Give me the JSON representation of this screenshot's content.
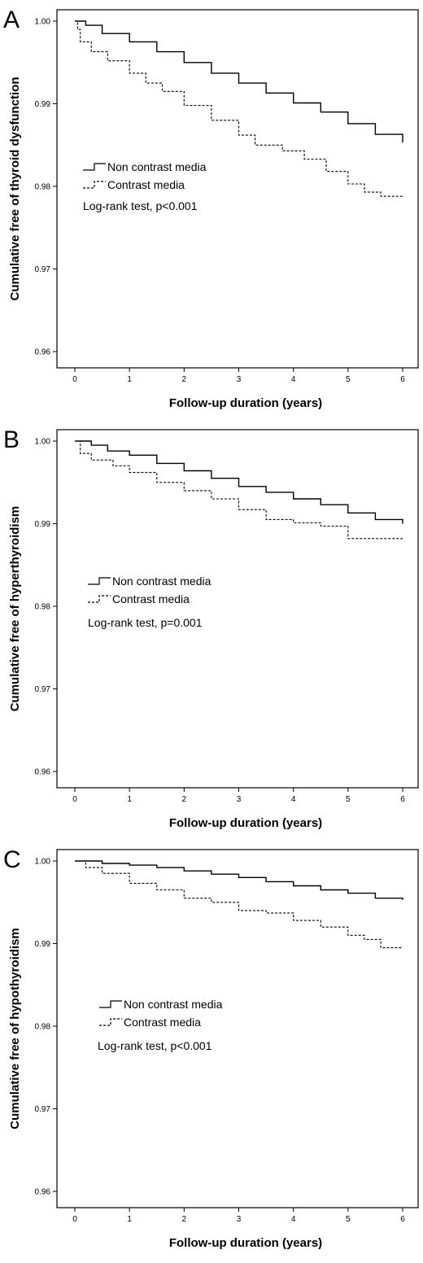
{
  "chart_data": [
    {
      "type": "line",
      "panel_label": "A",
      "ylabel": "Cumulative free of thyroid dysfunction",
      "xlabel": "Follow-up duration (years)",
      "xlim": [
        0,
        6
      ],
      "ylim": [
        0.96,
        1.0
      ],
      "x_ticks": [
        "0",
        "1",
        "2",
        "3",
        "4",
        "5",
        "6"
      ],
      "y_ticks": [
        "0.96",
        "0.97",
        "0.98",
        "0.99",
        "1.00"
      ],
      "legend_position": "center-left",
      "annotation": "Log-rank test, p<0.001",
      "series": [
        {
          "name": "Non contrast media",
          "style": "solid",
          "x": [
            0,
            0.2,
            0.5,
            1,
            1.5,
            2,
            2.5,
            3,
            3.5,
            4,
            4.5,
            5,
            5.5,
            6
          ],
          "y": [
            1.0,
            0.9995,
            0.9985,
            0.9975,
            0.9963,
            0.995,
            0.9937,
            0.9925,
            0.9913,
            0.9901,
            0.989,
            0.9876,
            0.9863,
            0.9853
          ]
        },
        {
          "name": "Contrast media",
          "style": "dashed",
          "x": [
            0,
            0.05,
            0.1,
            0.3,
            0.6,
            1,
            1.3,
            1.6,
            2,
            2.5,
            3,
            3.3,
            3.8,
            4.2,
            4.6,
            5,
            5.3,
            5.6,
            6
          ],
          "y": [
            1.0,
            0.999,
            0.9975,
            0.9963,
            0.9952,
            0.9937,
            0.9925,
            0.9915,
            0.9898,
            0.988,
            0.9862,
            0.985,
            0.9843,
            0.9833,
            0.9818,
            0.9803,
            0.9793,
            0.9788,
            0.9788
          ]
        }
      ]
    },
    {
      "type": "line",
      "panel_label": "B",
      "ylabel": "Cumulative free of hyperthyroidism",
      "xlabel": "Follow-up duration (years)",
      "xlim": [
        0,
        6
      ],
      "ylim": [
        0.96,
        1.0
      ],
      "x_ticks": [
        "0",
        "1",
        "2",
        "3",
        "4",
        "5",
        "6"
      ],
      "y_ticks": [
        "0.96",
        "0.97",
        "0.98",
        "0.99",
        "1.00"
      ],
      "legend_position": "center-left",
      "annotation": "Log-rank test, p=0.001",
      "series": [
        {
          "name": "Non contrast media",
          "style": "solid",
          "x": [
            0,
            0.3,
            0.6,
            1,
            1.5,
            2,
            2.5,
            3,
            3.5,
            4,
            4.5,
            5,
            5.5,
            6
          ],
          "y": [
            1.0,
            0.9995,
            0.9988,
            0.9983,
            0.9973,
            0.9964,
            0.9955,
            0.9945,
            0.9938,
            0.993,
            0.9923,
            0.9913,
            0.9905,
            0.99
          ]
        },
        {
          "name": "Contrast media",
          "style": "dashed",
          "x": [
            0,
            0.1,
            0.3,
            0.7,
            1,
            1.5,
            2,
            2.5,
            3,
            3.5,
            4,
            4.5,
            5,
            5.5,
            6
          ],
          "y": [
            1.0,
            0.9985,
            0.9977,
            0.997,
            0.9962,
            0.995,
            0.994,
            0.993,
            0.9917,
            0.9905,
            0.9901,
            0.9897,
            0.9882,
            0.9882,
            0.9882
          ]
        }
      ]
    },
    {
      "type": "line",
      "panel_label": "C",
      "ylabel": "Cumulative free of hypothyroidism",
      "xlabel": "Follow-up duration (years)",
      "xlim": [
        0,
        6
      ],
      "ylim": [
        0.96,
        1.0
      ],
      "x_ticks": [
        "0",
        "1",
        "2",
        "3",
        "4",
        "5",
        "6"
      ],
      "y_ticks": [
        "0.96",
        "0.97",
        "0.98",
        "0.99",
        "1.00"
      ],
      "legend_position": "center-left",
      "annotation": "Log-rank test, p<0.001",
      "series": [
        {
          "name": "Non contrast media",
          "style": "solid",
          "x": [
            0,
            0.5,
            1,
            1.5,
            2,
            2.5,
            3,
            3.5,
            4,
            4.5,
            5,
            5.5,
            6
          ],
          "y": [
            1.0,
            0.9997,
            0.9995,
            0.9992,
            0.9988,
            0.9984,
            0.998,
            0.9975,
            0.997,
            0.9965,
            0.9961,
            0.9955,
            0.9953
          ]
        },
        {
          "name": "Contrast media",
          "style": "dashed",
          "x": [
            0,
            0.2,
            0.5,
            1,
            1.5,
            2,
            2.5,
            3,
            3.5,
            4,
            4.5,
            5,
            5.3,
            5.6,
            6
          ],
          "y": [
            1.0,
            0.9992,
            0.9985,
            0.9973,
            0.9965,
            0.9955,
            0.995,
            0.994,
            0.9937,
            0.9928,
            0.992,
            0.991,
            0.9905,
            0.9895,
            0.9895
          ]
        }
      ]
    }
  ]
}
